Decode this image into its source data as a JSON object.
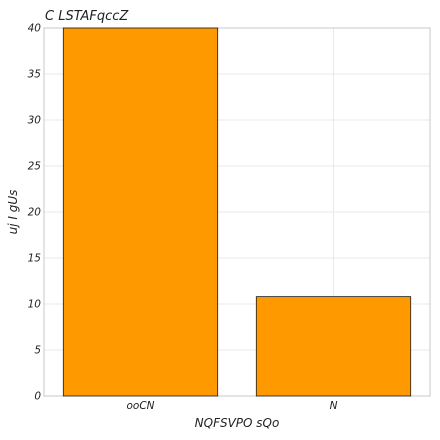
{
  "chart_data": {
    "type": "bar",
    "title": "C LSTAFqccZ",
    "xlabel": "NQFSVPO sQo",
    "ylabel": "uj I gUs",
    "categories": [
      "ooCN",
      "N"
    ],
    "values": [
      40,
      10.8
    ],
    "ylim": [
      0,
      40
    ],
    "yticks": [
      0,
      5,
      10,
      15,
      20,
      25,
      30,
      35,
      40
    ],
    "grid": true,
    "colors": {
      "bar": "#ff9900",
      "bar_edge": "#1a1a1a",
      "grid": "#e9e9e9",
      "frame": "#c8c8c8",
      "text": "#222222"
    }
  }
}
